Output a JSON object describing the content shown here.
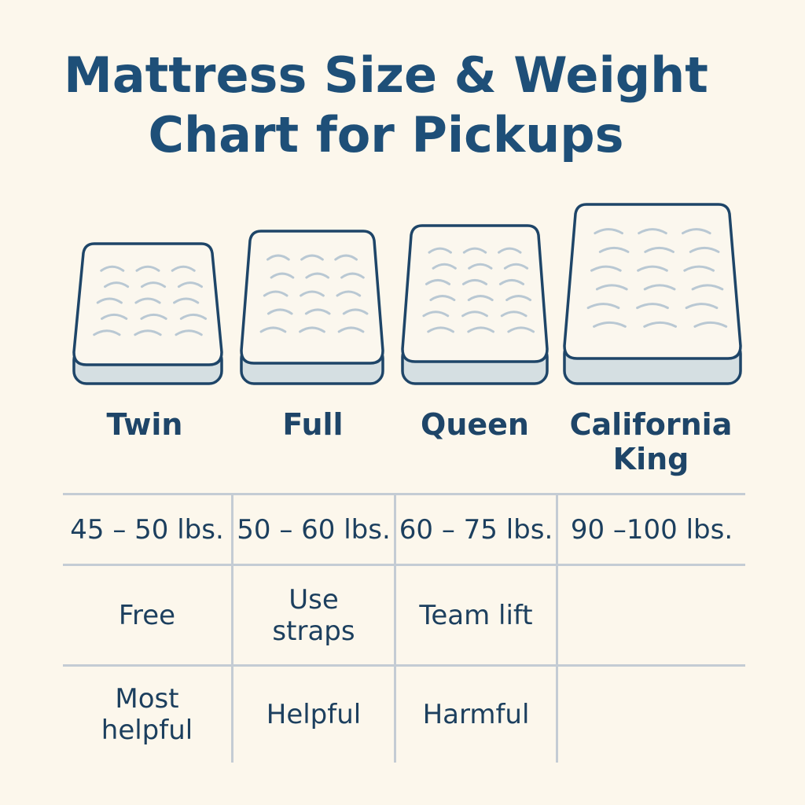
{
  "title": {
    "line1": "Mattress Size & Weight",
    "line2": "Chart for Pickups"
  },
  "colors": {
    "background": "#fcf7ec",
    "title": "#1e4f78",
    "outline": "#1e4568",
    "mattress_top": "#fbf7ee",
    "mattress_side": "#d5dfe2",
    "quilt_stitch": "#b9c8d3",
    "grid": "#c4ccd4"
  },
  "icons": [
    "twin-mattress-icon",
    "full-mattress-icon",
    "queen-mattress-icon",
    "california-king-mattress-icon"
  ],
  "sizes": [
    {
      "name_line1": "Twin",
      "name_line2": ""
    },
    {
      "name_line1": "Full",
      "name_line2": ""
    },
    {
      "name_line1": "Queen",
      "name_line2": ""
    },
    {
      "name_line1": "California",
      "name_line2": "King"
    }
  ],
  "rows": [
    {
      "row": "weight",
      "cells": [
        {
          "line1": "45 – 50 lbs.",
          "line2": ""
        },
        {
          "line1": "50 – 60 lbs.",
          "line2": ""
        },
        {
          "line1": "60 – 75 lbs.",
          "line2": ""
        },
        {
          "line1": "90 –100 lbs.",
          "line2": ""
        }
      ]
    },
    {
      "row": "handling",
      "cells": [
        {
          "line1": "Free",
          "line2": ""
        },
        {
          "line1": "Use",
          "line2": "straps"
        },
        {
          "line1": "Team lift",
          "line2": ""
        },
        {
          "line1": "",
          "line2": ""
        }
      ]
    },
    {
      "row": "rating",
      "cells": [
        {
          "line1": "Most",
          "line2": "helpful"
        },
        {
          "line1": "Helpful",
          "line2": ""
        },
        {
          "line1": "Harmful",
          "line2": ""
        },
        {
          "line1": "",
          "line2": ""
        }
      ]
    }
  ]
}
